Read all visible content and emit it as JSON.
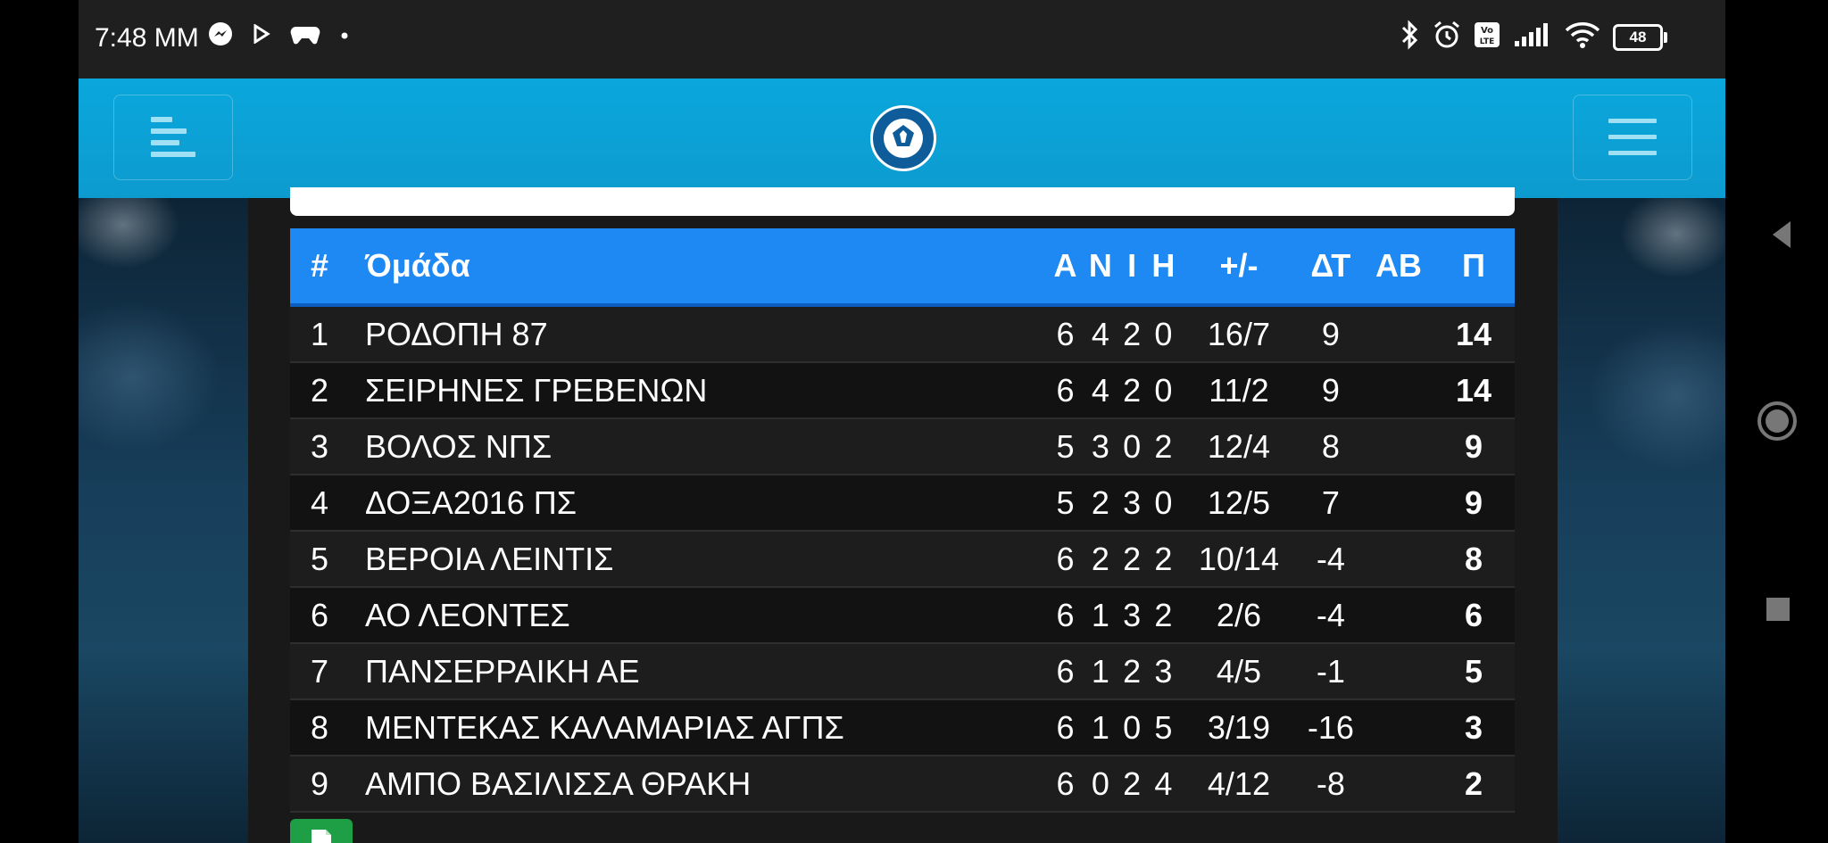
{
  "status_bar": {
    "time": "7:48 MM",
    "battery": "48",
    "left_icons": [
      "messenger-icon",
      "play-icon",
      "gamepad-icon",
      "dot-icon"
    ],
    "right_icons": [
      "bluetooth-icon",
      "alarm-icon",
      "volte-icon",
      "signal-icon",
      "wifi-icon",
      "battery-icon"
    ]
  },
  "header": {
    "left_button_icon": "menu-align-left-icon",
    "right_button_icon": "hamburger-menu-icon",
    "logo_icon": "hellenic-football-federation-logo"
  },
  "standings": {
    "columns": {
      "pos": "#",
      "team": "Όμάδα",
      "played": "Α",
      "wins": "Ν",
      "draws": "Ι",
      "losses": "Η",
      "goals": "+/-",
      "diff": "ΔΤ",
      "ab": "ΑΒ",
      "points": "Π"
    },
    "rows": [
      {
        "pos": "1",
        "team": "ΡΟΔΟΠΗ 87",
        "played": "6",
        "wins": "4",
        "draws": "2",
        "losses": "0",
        "goals": "16/7",
        "diff": "9",
        "ab": "",
        "points": "14"
      },
      {
        "pos": "2",
        "team": "ΣΕΙΡΗΝΕΣ ΓΡΕΒΕΝΩΝ",
        "played": "6",
        "wins": "4",
        "draws": "2",
        "losses": "0",
        "goals": "11/2",
        "diff": "9",
        "ab": "",
        "points": "14"
      },
      {
        "pos": "3",
        "team": "ΒΟΛΟΣ ΝΠΣ",
        "played": "5",
        "wins": "3",
        "draws": "0",
        "losses": "2",
        "goals": "12/4",
        "diff": "8",
        "ab": "",
        "points": "9"
      },
      {
        "pos": "4",
        "team": "ΔΟΞΑ2016 ΠΣ",
        "played": "5",
        "wins": "2",
        "draws": "3",
        "losses": "0",
        "goals": "12/5",
        "diff": "7",
        "ab": "",
        "points": "9"
      },
      {
        "pos": "5",
        "team": "ΒΕΡΟΙΑ ΛΕΙΝΤΙΣ",
        "played": "6",
        "wins": "2",
        "draws": "2",
        "losses": "2",
        "goals": "10/14",
        "diff": "-4",
        "ab": "",
        "points": "8"
      },
      {
        "pos": "6",
        "team": "ΑΟ ΛΕΟΝΤΕΣ",
        "played": "6",
        "wins": "1",
        "draws": "3",
        "losses": "2",
        "goals": "2/6",
        "diff": "-4",
        "ab": "",
        "points": "6"
      },
      {
        "pos": "7",
        "team": "ΠΑΝΣΕΡΡΑΙΚΗ ΑΕ",
        "played": "6",
        "wins": "1",
        "draws": "2",
        "losses": "3",
        "goals": "4/5",
        "diff": "-1",
        "ab": "",
        "points": "5"
      },
      {
        "pos": "8",
        "team": "ΜΕΝΤΕΚΑΣ ΚΑΛΑΜΑΡΙΑΣ ΑΓΠΣ",
        "played": "6",
        "wins": "1",
        "draws": "0",
        "losses": "5",
        "goals": "3/19",
        "diff": "-16",
        "ab": "",
        "points": "3"
      },
      {
        "pos": "9",
        "team": "ΑΜΠΟ ΒΑΣΙΛΙΣΣΑ ΘΡΑΚΗ",
        "played": "6",
        "wins": "0",
        "draws": "2",
        "losses": "4",
        "goals": "4/12",
        "diff": "-8",
        "ab": "",
        "points": "2"
      }
    ]
  },
  "nav_bar": {
    "icons": [
      "back-icon",
      "home-icon",
      "recents-icon"
    ]
  },
  "colors": {
    "header": "#0aa7dc",
    "table_header": "#1e88f3",
    "row_odd": "#1d1d1d",
    "row_even": "#121212",
    "export_button": "#1e9e45"
  }
}
